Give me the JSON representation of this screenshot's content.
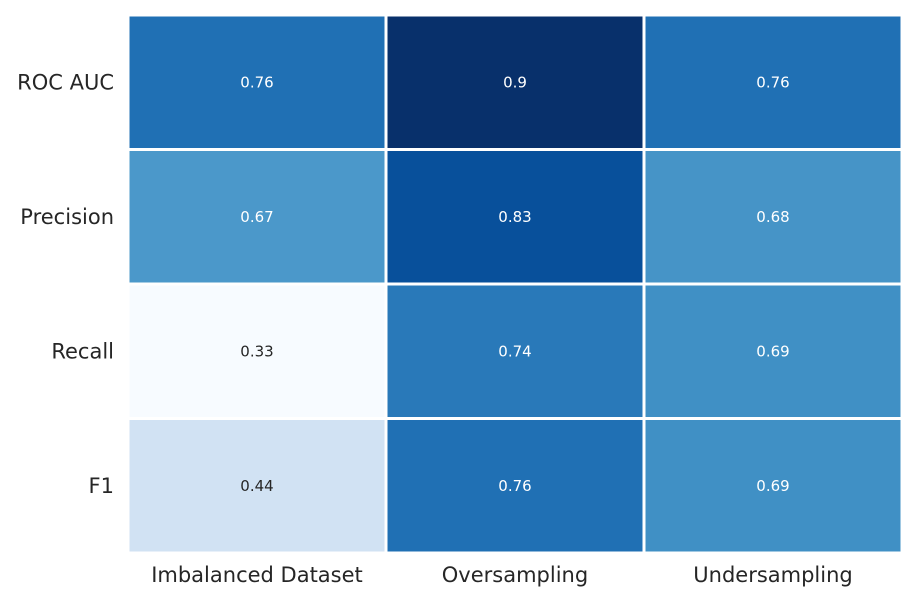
{
  "chart_data": {
    "type": "heatmap",
    "title": "",
    "xlabel": "",
    "ylabel": "",
    "colormap": "Blues",
    "colorbar": false,
    "x_categories": [
      "Imbalanced Dataset",
      "Oversampling",
      "Undersampling"
    ],
    "y_categories": [
      "ROC AUC",
      "Precision",
      "Recall",
      "F1"
    ],
    "values": [
      [
        0.76,
        0.9,
        0.76
      ],
      [
        0.67,
        0.83,
        0.68
      ],
      [
        0.33,
        0.74,
        0.69
      ],
      [
        0.44,
        0.76,
        0.69
      ]
    ],
    "value_labels": [
      [
        "0.76",
        "0.9",
        "0.76"
      ],
      [
        "0.67",
        "0.83",
        "0.68"
      ],
      [
        "0.33",
        "0.74",
        "0.69"
      ],
      [
        "0.44",
        "0.76",
        "0.69"
      ]
    ],
    "cell_separator_color": "#ffffff"
  }
}
